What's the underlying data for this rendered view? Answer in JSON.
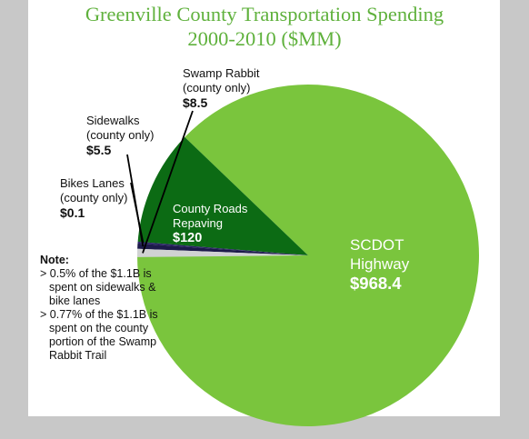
{
  "title_line1": "Greenville County Transportation Spending",
  "title_line2": "2000-2010 ($MM)",
  "colors": {
    "highway": "#7ac53d",
    "roads": "#0c6b14",
    "bikes": "#2a2266",
    "sidewalks": "#1c1a4a",
    "swamp": "#d0d2d2",
    "title": "#5fb13c"
  },
  "chart_data": {
    "type": "pie",
    "title": "Greenville County Transportation Spending 2000-2010 ($MM)",
    "slices": [
      {
        "name": "SCDOT Highway",
        "value": 968.4,
        "value_label": "$968.4"
      },
      {
        "name": "County Roads Repaving",
        "value": 120,
        "value_label": "$120"
      },
      {
        "name": "Bikes Lanes (county only)",
        "value": 0.1,
        "value_label": "$0.1"
      },
      {
        "name": "Sidewalks (county only)",
        "value": 5.5,
        "value_label": "$5.5"
      },
      {
        "name": "Swamp Rabbit (county only)",
        "value": 8.5,
        "value_label": "$8.5"
      }
    ]
  },
  "labels": {
    "swamp": {
      "line1": "Swamp Rabbit",
      "line2": "(county only)",
      "value": "$8.5"
    },
    "sidewalks": {
      "line1": "Sidewalks",
      "line2": "(county only)",
      "value": "$5.5"
    },
    "bikes": {
      "line1": "Bikes Lanes",
      "line2": "(county only)",
      "value": "$0.1"
    },
    "roads": {
      "line1": "County Roads",
      "line2": "Repaving",
      "value": "$120"
    },
    "highway": {
      "line1": "SCDOT",
      "line2": "Highway",
      "value": "$968.4"
    }
  },
  "note": {
    "title": "Note:",
    "items": [
      "> 0.5% of the $1.1B is spent on sidewalks & bike lanes",
      "> 0.77% of the $1.1B is spent on the county portion of the Swamp Rabbit Trail"
    ]
  }
}
